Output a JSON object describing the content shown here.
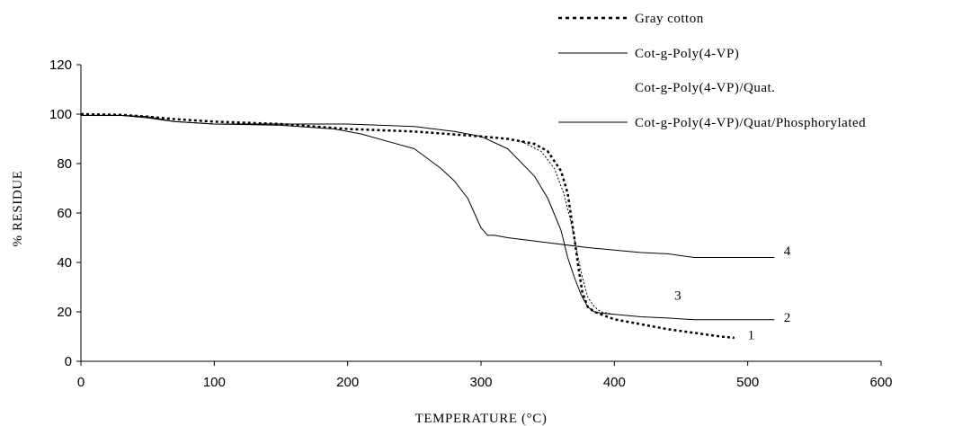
{
  "chart_data": {
    "type": "line",
    "xlabel": "TEMPERATURE (°C)",
    "ylabel": "% RESIDUE",
    "xlim": [
      0,
      600
    ],
    "ylim": [
      0,
      120
    ],
    "xticks": [
      0,
      100,
      200,
      300,
      400,
      500,
      600
    ],
    "yticks": [
      0,
      20,
      40,
      60,
      80,
      100,
      120
    ],
    "grid": false,
    "legend_position": "top-right",
    "legend": [
      "Gray cotton",
      "Cot-g-Poly(4-VP)",
      "Cot-g-Poly(4-VP)/Quat.",
      "Cot-g-Poly(4-VP)/Quat/Phosphorylated"
    ],
    "series": [
      {
        "name": "Gray cotton",
        "label": "1",
        "style": "dotted",
        "x": [
          0,
          30,
          50,
          70,
          100,
          150,
          200,
          250,
          300,
          320,
          340,
          350,
          360,
          365,
          370,
          373,
          376,
          380,
          385,
          390,
          400,
          420,
          440,
          460,
          480,
          490
        ],
        "y": [
          100,
          99.7,
          99,
          98,
          97,
          96,
          94,
          93,
          91,
          90,
          88,
          85,
          77,
          68,
          50,
          38,
          28,
          22,
          20,
          19,
          17,
          15,
          13,
          11.5,
          10,
          9.5
        ]
      },
      {
        "name": "Cot-g-Poly(4-VP)",
        "label": "2",
        "style": "solid",
        "x": [
          0,
          30,
          50,
          70,
          100,
          150,
          200,
          250,
          280,
          300,
          320,
          340,
          350,
          360,
          365,
          370,
          375,
          380,
          385,
          390,
          400,
          420,
          440,
          460,
          480,
          500,
          520
        ],
        "y": [
          99.5,
          99.5,
          99,
          97,
          96,
          96,
          96,
          95,
          93,
          91,
          86,
          75,
          66,
          53,
          42,
          34,
          27,
          22,
          20,
          19.5,
          19,
          18,
          17.5,
          16.8,
          16.8,
          16.8,
          16.8
        ]
      },
      {
        "name": "Cot-g-Poly(4-VP)/Quat.",
        "label": "3",
        "style": "dotted-light",
        "x": [
          330,
          345,
          355,
          362,
          368,
          372,
          376,
          380,
          385,
          390,
          400
        ],
        "y": [
          89,
          85,
          78,
          68,
          55,
          44,
          34,
          26,
          22,
          20,
          19
        ]
      },
      {
        "name": "Cot-g-Poly(4-VP)/Quat/Phosphorylated",
        "label": "4",
        "style": "solid",
        "x": [
          0,
          30,
          50,
          70,
          100,
          150,
          190,
          210,
          230,
          250,
          260,
          270,
          280,
          290,
          295,
          300,
          305,
          310,
          320,
          350,
          380,
          400,
          420,
          440,
          460,
          480,
          500,
          520
        ],
        "y": [
          99.5,
          99.5,
          98.5,
          97,
          96,
          95.5,
          94,
          92,
          89,
          86,
          82,
          78,
          73,
          66,
          60,
          54,
          51,
          51,
          50,
          48,
          46,
          45,
          44,
          43.5,
          42,
          42,
          42,
          42
        ]
      }
    ]
  }
}
